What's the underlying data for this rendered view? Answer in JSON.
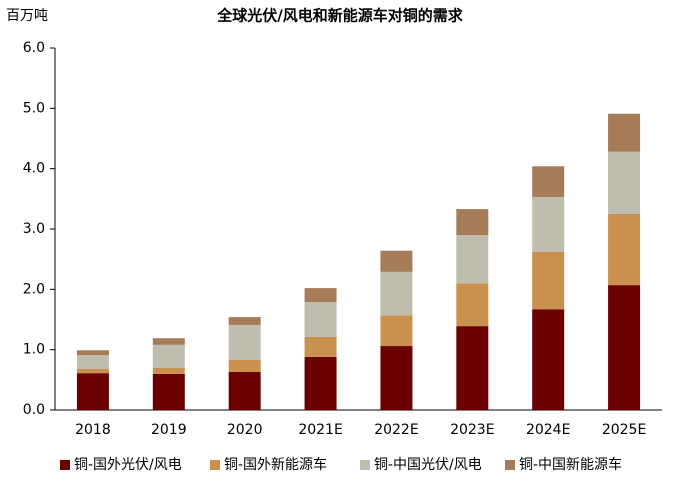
{
  "chart_data": {
    "type": "stacked_bar",
    "title": "全球光伏/风电和新能源车对铜的需求",
    "y_label": "百万吨",
    "categories": [
      "2018",
      "2019",
      "2020",
      "2021E",
      "2022E",
      "2023E",
      "2024E",
      "2025E"
    ],
    "series": [
      {
        "name": "铜-国外光伏/风电",
        "color": "#6b0000",
        "values": [
          0.61,
          0.6,
          0.63,
          0.88,
          1.06,
          1.39,
          1.67,
          2.07
        ]
      },
      {
        "name": "铜-国外新能源车",
        "color": "#c8924e",
        "values": [
          0.07,
          0.1,
          0.2,
          0.33,
          0.51,
          0.71,
          0.95,
          1.18
        ]
      },
      {
        "name": "铜-中国光伏/风电",
        "color": "#bfbdad",
        "values": [
          0.23,
          0.38,
          0.58,
          0.58,
          0.72,
          0.8,
          0.91,
          1.03
        ]
      },
      {
        "name": "铜-中国新能源车",
        "color": "#a57b58",
        "values": [
          0.08,
          0.11,
          0.13,
          0.23,
          0.35,
          0.43,
          0.51,
          0.63
        ]
      }
    ],
    "ylim": [
      0,
      6
    ],
    "yticks": [
      {
        "value": 0,
        "label": "0.0"
      },
      {
        "value": 1,
        "label": "1.0"
      },
      {
        "value": 2,
        "label": "2.0"
      },
      {
        "value": 3,
        "label": "3.0"
      },
      {
        "value": 4,
        "label": "4.0"
      },
      {
        "value": 5,
        "label": "5.0"
      },
      {
        "value": 6,
        "label": "6.0"
      }
    ],
    "legend": "bottom"
  }
}
